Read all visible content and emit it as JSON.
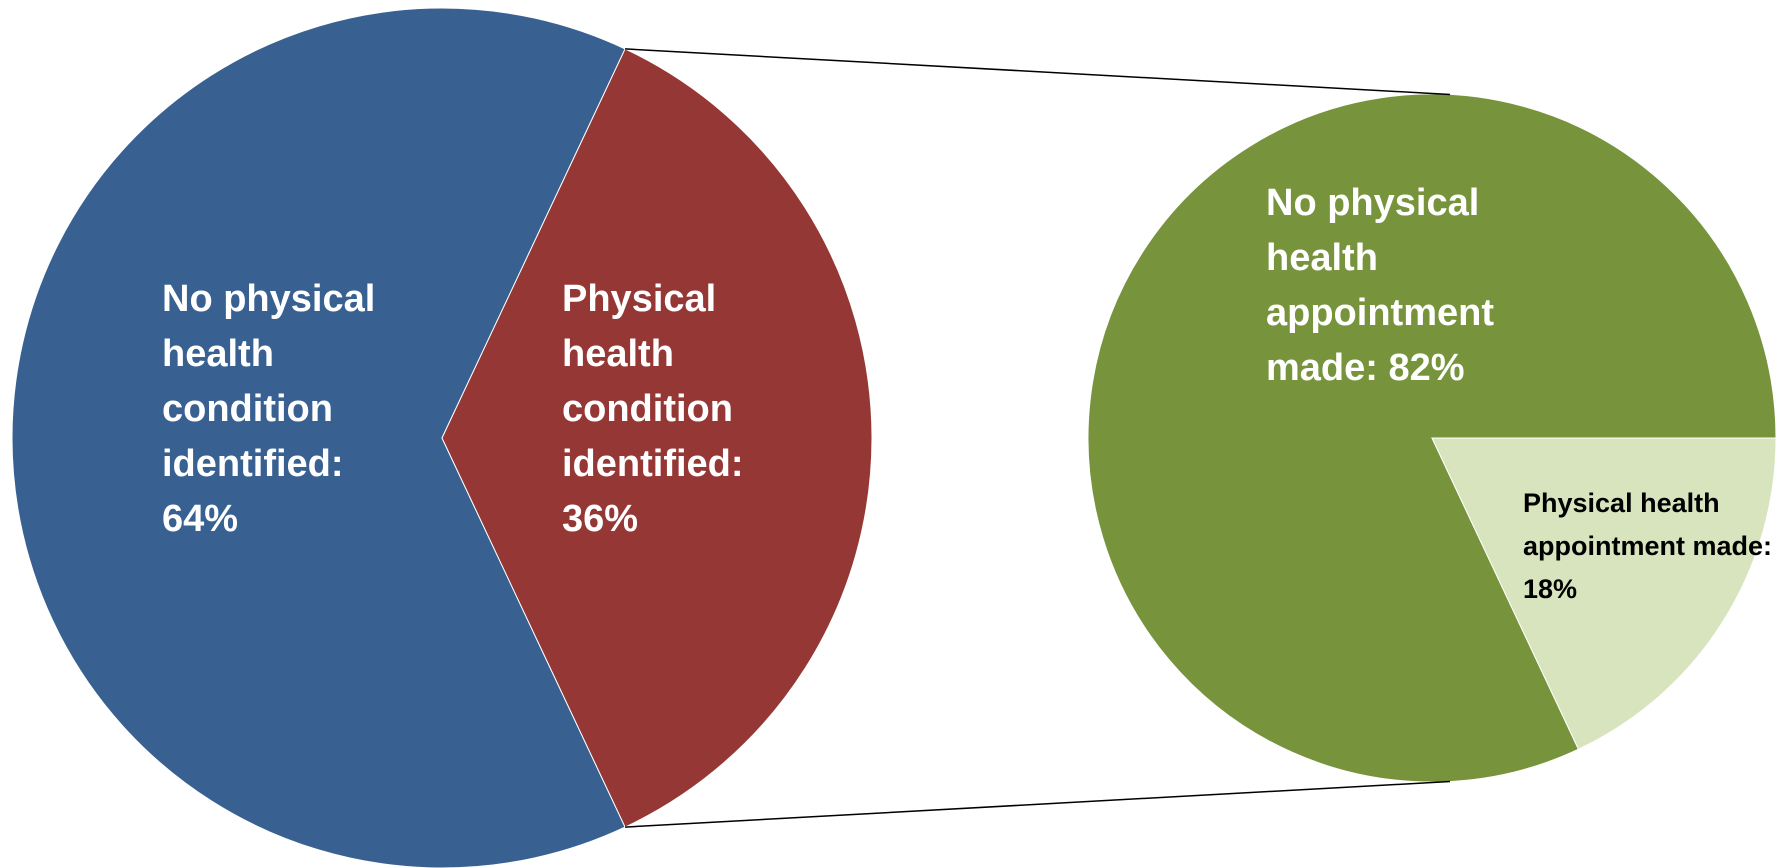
{
  "chart_data": [
    {
      "type": "pie",
      "values": [
        64,
        36
      ],
      "value_labels": [
        "No physical health condition identified: 64%",
        "Physical health condition identified: 36%"
      ],
      "colors": [
        "#386192",
        "#953735"
      ]
    },
    {
      "type": "pie",
      "values": [
        82,
        18
      ],
      "value_labels": [
        "No physical health appointment made: 82%",
        "Physical health appointment made: 18%"
      ],
      "colors": [
        "#77933c",
        "#d7e4bd"
      ]
    }
  ]
}
